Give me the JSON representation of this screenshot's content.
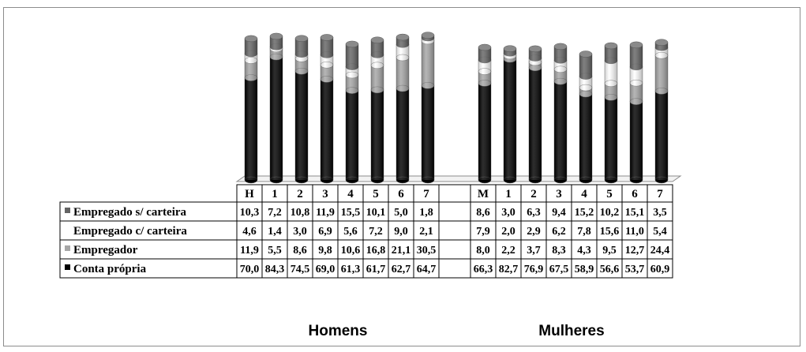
{
  "chart_data": {
    "type": "bar",
    "stacked": true,
    "groups": [
      {
        "name": "Homens",
        "categories": [
          "H",
          "1",
          "2",
          "3",
          "4",
          "5",
          "6",
          "7"
        ],
        "series": [
          {
            "name": "Conta própria",
            "values": [
              70.0,
              84.3,
              74.5,
              69.0,
              61.3,
              61.7,
              62.7,
              64.7
            ],
            "labels": [
              "70,0",
              "84,3",
              "74,5",
              "69,0",
              "61,3",
              "61,7",
              "62,7",
              "64,7"
            ]
          },
          {
            "name": "Empregador",
            "values": [
              11.9,
              5.5,
              8.6,
              9.8,
              10.6,
              16.8,
              21.1,
              30.5
            ],
            "labels": [
              "11,9",
              "5,5",
              "8,6",
              "9,8",
              "10,6",
              "16,8",
              "21,1",
              "30,5"
            ]
          },
          {
            "name": "Empregado c/ carteira",
            "values": [
              4.6,
              1.4,
              3.0,
              6.9,
              5.6,
              7.2,
              9.0,
              2.1
            ],
            "labels": [
              "4,6",
              "1,4",
              "3,0",
              "6,9",
              "5,6",
              "7,2",
              "9,0",
              "2,1"
            ]
          },
          {
            "name": "Empregado s/ carteira",
            "values": [
              10.3,
              7.2,
              10.8,
              11.9,
              15.5,
              10.1,
              5.0,
              1.8
            ],
            "labels": [
              "10,3",
              "7,2",
              "10,8",
              "11,9",
              "15,5",
              "10,1",
              "5,0",
              "1,8"
            ]
          }
        ]
      },
      {
        "name": "Mulheres",
        "categories": [
          "M",
          "1",
          "2",
          "3",
          "4",
          "5",
          "6",
          "7"
        ],
        "series": [
          {
            "name": "Conta própria",
            "values": [
              66.3,
              82.7,
              76.9,
              67.5,
              58.9,
              56.6,
              53.7,
              60.9
            ],
            "labels": [
              "66,3",
              "82,7",
              "76,9",
              "67,5",
              "58,9",
              "56,6",
              "53,7",
              "60,9"
            ]
          },
          {
            "name": "Empregador",
            "values": [
              8.0,
              2.2,
              3.7,
              8.3,
              4.3,
              9.5,
              12.7,
              24.4
            ],
            "labels": [
              "8,0",
              "2,2",
              "3,7",
              "8,3",
              "4,3",
              "9,5",
              "12,7",
              "24,4"
            ]
          },
          {
            "name": "Empregado c/ carteira",
            "values": [
              7.9,
              2.0,
              2.9,
              6.2,
              7.8,
              15.6,
              11.0,
              5.4
            ],
            "labels": [
              "7,9",
              "2,0",
              "2,9",
              "6,2",
              "7,8",
              "15,6",
              "11,0",
              "5,4"
            ]
          },
          {
            "name": "Empregado s/ carteira",
            "values": [
              8.6,
              3.0,
              6.3,
              9.4,
              15.2,
              10.2,
              15.1,
              3.5
            ],
            "labels": [
              "8,6",
              "3,0",
              "6,3",
              "9,4",
              "15,2",
              "10,2",
              "15,1",
              "3,5"
            ]
          }
        ]
      }
    ],
    "table_row_order": [
      "Empregado s/ carteira",
      "Empregado c/ carteira",
      "Empregador",
      "Conta própria"
    ],
    "colors": {
      "Conta própria": "#000000",
      "Empregador": "#a6a6a6",
      "Empregado c/ carteira": "#ffffff",
      "Empregado s/ carteira": "#646464"
    },
    "ylim": [
      0,
      100
    ],
    "legend": "data table rows"
  }
}
